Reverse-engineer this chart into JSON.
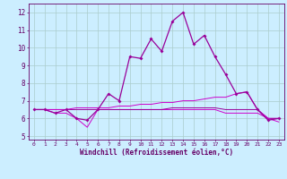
{
  "background_color": "#cceeff",
  "grid_color": "#aacccc",
  "line_color": "#cc00cc",
  "line_color2": "#990099",
  "x_data": [
    0,
    1,
    2,
    3,
    4,
    5,
    6,
    7,
    8,
    9,
    10,
    11,
    12,
    13,
    14,
    15,
    16,
    17,
    18,
    19,
    20,
    21,
    22,
    23
  ],
  "series1": [
    6.5,
    6.5,
    6.3,
    6.5,
    6.0,
    5.9,
    6.5,
    7.4,
    7.0,
    9.5,
    9.4,
    10.5,
    9.8,
    11.5,
    12.0,
    10.2,
    10.7,
    9.5,
    8.5,
    7.4,
    7.5,
    6.5,
    5.9,
    6.0
  ],
  "series2": [
    6.5,
    6.5,
    6.3,
    6.3,
    6.0,
    5.5,
    6.5,
    6.5,
    6.5,
    6.5,
    6.5,
    6.5,
    6.5,
    6.5,
    6.5,
    6.5,
    6.5,
    6.5,
    6.3,
    6.3,
    6.3,
    6.3,
    6.0,
    6.0
  ],
  "series3": [
    6.5,
    6.5,
    6.5,
    6.5,
    6.5,
    6.5,
    6.5,
    6.5,
    6.5,
    6.5,
    6.5,
    6.5,
    6.5,
    6.6,
    6.6,
    6.6,
    6.6,
    6.6,
    6.5,
    6.5,
    6.5,
    6.5,
    6.0,
    6.0
  ],
  "series4": [
    6.5,
    6.5,
    6.5,
    6.5,
    6.6,
    6.6,
    6.6,
    6.6,
    6.7,
    6.7,
    6.8,
    6.8,
    6.9,
    6.9,
    7.0,
    7.0,
    7.1,
    7.2,
    7.2,
    7.4,
    7.5,
    6.5,
    6.0,
    5.8
  ],
  "xlabel": "Windchill (Refroidissement éolien,°C)",
  "yticks": [
    5,
    6,
    7,
    8,
    9,
    10,
    11,
    12
  ],
  "xticks": [
    0,
    1,
    2,
    3,
    4,
    5,
    6,
    7,
    8,
    9,
    10,
    11,
    12,
    13,
    14,
    15,
    16,
    17,
    18,
    19,
    20,
    21,
    22,
    23
  ],
  "ylim": [
    4.8,
    12.5
  ],
  "xlim": [
    -0.5,
    23.5
  ]
}
